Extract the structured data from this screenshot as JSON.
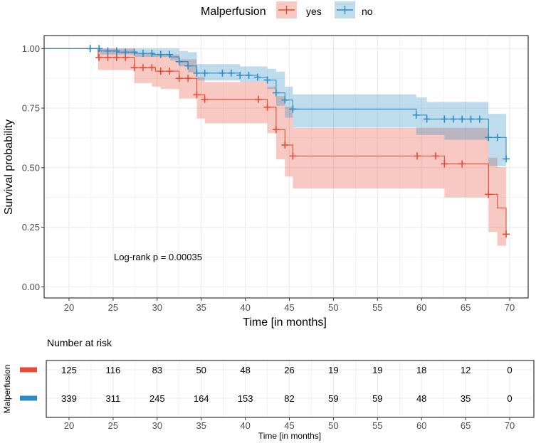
{
  "chart_data": {
    "type": "line",
    "subtype": "kaplan-meier",
    "title": "",
    "xlabel": "Time [in months]",
    "ylabel": "Survival probability",
    "xlim": [
      17.2,
      72.1
    ],
    "ylim": [
      -0.047,
      1.055
    ],
    "x_ticks": [
      "20",
      "25",
      "30",
      "35",
      "40",
      "45",
      "50",
      "55",
      "60",
      "65",
      "70"
    ],
    "y_ticks": [
      "0.00",
      "0.25",
      "0.50",
      "0.75",
      "1.00"
    ],
    "grid": true,
    "legend": {
      "title": "Malperfusion",
      "position": "top",
      "entries": [
        "yes",
        "no"
      ]
    },
    "annotation": "Log-rank p = 0.00035",
    "colors": {
      "yes": "#E64B35",
      "no": "#2B8CC4"
    },
    "series": [
      {
        "name": "yes",
        "end": 69.6,
        "steps": [
          [
            0,
            1
          ],
          [
            23.3,
            0.963
          ],
          [
            27.4,
            0.92
          ],
          [
            29.8,
            0.905
          ],
          [
            32.5,
            0.875
          ],
          [
            34.5,
            0.806
          ],
          [
            35.4,
            0.787
          ],
          [
            42.5,
            0.754
          ],
          [
            43.5,
            0.66
          ],
          [
            44.5,
            0.595
          ],
          [
            45.4,
            0.549
          ],
          [
            62.6,
            0.516
          ],
          [
            67.6,
            0.388
          ],
          [
            68.6,
            0.331
          ],
          [
            69.6,
            0.221
          ]
        ],
        "censor": [
          22.4,
          23.4,
          24.4,
          25.4,
          26.4,
          27.4,
          28.4,
          29.4,
          30.4,
          31.4,
          32.5,
          33.5,
          34.5,
          35.4,
          41.5,
          42.5,
          43.5,
          44.5,
          45.4,
          59.5,
          61.6,
          62.6,
          64.6,
          67.6,
          69.6
        ],
        "ci": [
          [
            0,
            1,
            1
          ],
          [
            23.3,
            0.91,
            1
          ],
          [
            27.4,
            0.855,
            0.98
          ],
          [
            29.4,
            0.84,
            0.975
          ],
          [
            30.4,
            0.83,
            0.975
          ],
          [
            32.5,
            0.79,
            0.955
          ],
          [
            34.5,
            0.706,
            0.88
          ],
          [
            35.4,
            0.686,
            0.86
          ],
          [
            42.5,
            0.645,
            0.84
          ],
          [
            43.5,
            0.535,
            0.8
          ],
          [
            44.5,
            0.463,
            0.756
          ],
          [
            45.4,
            0.413,
            0.667
          ],
          [
            62.6,
            0.375,
            0.667
          ],
          [
            67.6,
            0.23,
            0.542
          ],
          [
            68.6,
            0.172,
            0.502
          ]
        ]
      },
      {
        "name": "no",
        "end": 69.6,
        "steps": [
          [
            0,
            1
          ],
          [
            23.5,
            0.99
          ],
          [
            25.5,
            0.985
          ],
          [
            27.5,
            0.98
          ],
          [
            29.5,
            0.975
          ],
          [
            31.5,
            0.965
          ],
          [
            32.5,
            0.945
          ],
          [
            33.5,
            0.927
          ],
          [
            34.5,
            0.897
          ],
          [
            39.4,
            0.888
          ],
          [
            41.4,
            0.88
          ],
          [
            42.5,
            0.868
          ],
          [
            43.5,
            0.814
          ],
          [
            44.5,
            0.784
          ],
          [
            45.4,
            0.746
          ],
          [
            59.4,
            0.721
          ],
          [
            60.6,
            0.704
          ],
          [
            67.6,
            0.627
          ],
          [
            69.6,
            0.537
          ]
        ],
        "censor": [
          22.4,
          23.4,
          24.4,
          25.4,
          26.4,
          27.4,
          28.4,
          29.4,
          30.4,
          31.4,
          32.5,
          33.5,
          34.5,
          35.4,
          37.4,
          38.4,
          39.4,
          40.4,
          41.4,
          42.5,
          43.5,
          44.5,
          45.4,
          59.4,
          60.6,
          62.6,
          63.6,
          64.6,
          65.6,
          66.6,
          67.6,
          68.6,
          69.6
        ],
        "ci": [
          [
            0,
            1,
            1
          ],
          [
            23.5,
            0.975,
            1
          ],
          [
            27.5,
            0.965,
            1
          ],
          [
            31.5,
            0.95,
            1
          ],
          [
            32.5,
            0.925,
            0.99
          ],
          [
            33.5,
            0.9,
            0.985
          ],
          [
            34.5,
            0.866,
            0.935
          ],
          [
            39.4,
            0.86,
            0.925
          ],
          [
            42.5,
            0.83,
            0.915
          ],
          [
            43.5,
            0.76,
            0.903
          ],
          [
            44.5,
            0.71,
            0.84
          ],
          [
            45.4,
            0.668,
            0.808
          ],
          [
            59.4,
            0.637,
            0.795
          ],
          [
            60.6,
            0.637,
            0.776
          ],
          [
            62.6,
            0.617,
            0.776
          ],
          [
            67.6,
            0.507,
            0.726
          ]
        ]
      }
    ],
    "risk_table": {
      "title": "Number at risk",
      "ylabel": "Malperfusion",
      "xlabel": "Time [in months]",
      "times": [
        20,
        25,
        30,
        35,
        40,
        45,
        50,
        55,
        60,
        65,
        70
      ],
      "rows": [
        {
          "strata": "yes",
          "values": [
            "125",
            "116",
            "83",
            "50",
            "48",
            "26",
            "19",
            "19",
            "18",
            "12",
            "0"
          ]
        },
        {
          "strata": "no",
          "values": [
            "339",
            "311",
            "245",
            "164",
            "153",
            "82",
            "59",
            "59",
            "48",
            "35",
            "0"
          ]
        }
      ]
    }
  }
}
